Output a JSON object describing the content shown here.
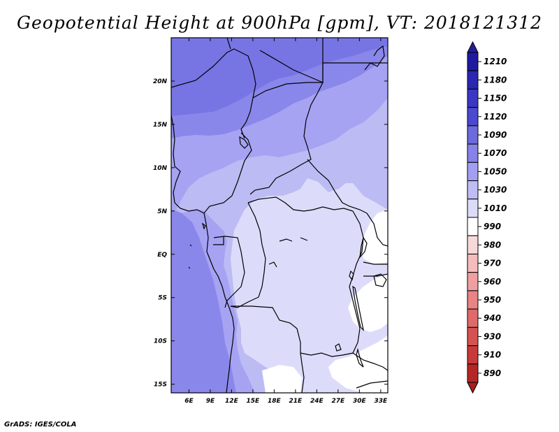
{
  "title": "Geopotential Height at 900hPa [gpm], VT: 2018121312",
  "credit": "GrADS: IGES/COLA",
  "map": {
    "lon_ticks": [
      "6E",
      "9E",
      "12E",
      "15E",
      "18E",
      "21E",
      "24E",
      "27E",
      "30E",
      "33E"
    ],
    "lat_ticks": [
      "20N",
      "15N",
      "10N",
      "5N",
      "EQ",
      "5S",
      "10S",
      "15S"
    ],
    "lon_values": [
      6,
      9,
      12,
      15,
      18,
      21,
      24,
      27,
      30,
      33
    ],
    "lat_values": [
      20,
      15,
      10,
      5,
      0,
      -5,
      -10,
      -15
    ],
    "lon_range": [
      3.5,
      34
    ],
    "lat_range": [
      -16,
      25
    ]
  },
  "legend": {
    "levels": [
      {
        "label": "1210",
        "color": "#1e1ba0"
      },
      {
        "label": "1180",
        "color": "#2a27b2"
      },
      {
        "label": "1150",
        "color": "#3a37c4"
      },
      {
        "label": "1120",
        "color": "#4b49d0"
      },
      {
        "label": "1090",
        "color": "#6d6adc"
      },
      {
        "label": "1070",
        "color": "#8582e8"
      },
      {
        "label": "1050",
        "color": "#a29ff2"
      },
      {
        "label": "1030",
        "color": "#bfbdf5"
      },
      {
        "label": "1010",
        "color": "#dcdcfa"
      },
      {
        "label": "990",
        "color": "#ffffff"
      },
      {
        "label": "980",
        "color": "#f7d9d9"
      },
      {
        "label": "970",
        "color": "#f4bcbc"
      },
      {
        "label": "960",
        "color": "#ef9f9f"
      },
      {
        "label": "950",
        "color": "#e88484"
      },
      {
        "label": "940",
        "color": "#e06a6a"
      },
      {
        "label": "930",
        "color": "#d65252"
      },
      {
        "label": "910",
        "color": "#c83a3a"
      },
      {
        "label": "890",
        "color": "#b52727"
      }
    ],
    "top_arrow_color": "#241e9a",
    "bottom_arrow_color": "#a81e1e"
  },
  "field_colors": {
    "c1090": "#7775e4",
    "c1070": "#8a87ea",
    "c1050": "#a6a3f3",
    "c1030": "#bdbbf4",
    "c1010": "#dcdcfa",
    "c990": "#ffffff"
  }
}
